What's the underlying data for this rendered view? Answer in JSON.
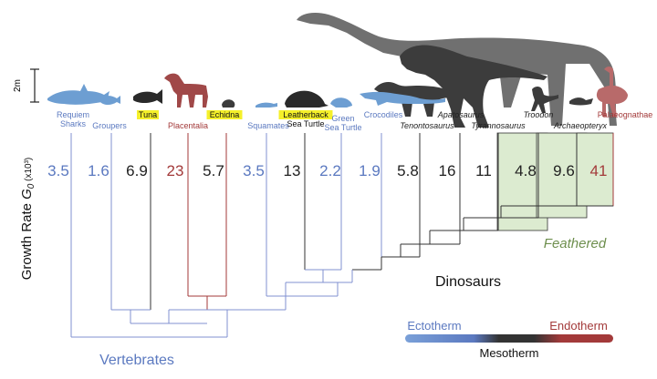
{
  "y_axis_label": "Growth Rate ",
  "y_axis_symbol": "G",
  "y_axis_sub": "0",
  "y_axis_unit": " (x10³)",
  "scale_label": "2m",
  "taxa": [
    {
      "label1": "Requiem",
      "label2": "Sharks",
      "value": "3.5",
      "class": "ecto"
    },
    {
      "label1": "Groupers",
      "label2": "",
      "value": "1.6",
      "class": "ecto"
    },
    {
      "label1": "Tuna",
      "label2": "",
      "value": "6.9",
      "class": "meso",
      "highlight": true
    },
    {
      "label1": "Placentalia",
      "label2": "",
      "value": "23",
      "class": "endo"
    },
    {
      "label1": "Echidna",
      "label2": "",
      "value": "5.7",
      "class": "meso",
      "highlight": true
    },
    {
      "label1": "Squamates",
      "label2": "",
      "value": "3.5",
      "class": "ecto"
    },
    {
      "label1": "Leatherback",
      "label2": "Sea Turtle",
      "value": "13",
      "class": "meso",
      "highlight": true
    },
    {
      "label1": "Green",
      "label2": "Sea Turtle",
      "value": "2.2",
      "class": "ecto"
    },
    {
      "label1": "Crocodiles",
      "label2": "",
      "value": "1.9",
      "class": "ecto"
    },
    {
      "label1": "Tenontosaurus",
      "label2": "",
      "value": "5.8",
      "class": "meso",
      "italic": true
    },
    {
      "label1": "Apatosaurus",
      "label2": "",
      "value": "16",
      "class": "meso",
      "italic": true
    },
    {
      "label1": "Tyrannosaurus",
      "label2": "",
      "value": "11",
      "class": "meso",
      "italic": true
    },
    {
      "label1": "Troodon",
      "label2": "",
      "value": "4.8",
      "class": "meso",
      "italic": true
    },
    {
      "label1": "Archaeopteryx",
      "label2": "",
      "value": "9.6",
      "class": "meso",
      "italic": true
    },
    {
      "label1": "Palaeognathae",
      "label2": "",
      "value": "41",
      "class": "endo"
    }
  ],
  "clade_labels": {
    "vertebrates": "Vertebrates",
    "dinosaurs": "Dinosaurs",
    "feathered": "Feathered"
  },
  "legend": {
    "ectotherm": "Ectotherm",
    "mesotherm": "Mesotherm",
    "endotherm": "Endotherm"
  },
  "colors": {
    "ectotherm": "#5b79c0",
    "mesotherm": "#222222",
    "endotherm": "#a33a3a",
    "feathered_fill": "#dcebd0",
    "feathered_text": "#6e8f4e",
    "highlight": "#f5f02a",
    "tree_blue": "#8090d0",
    "tree_red": "#a33a3a",
    "silhouette_blue": "#6d9ed2",
    "silhouette_dark": "#3c3c3c",
    "silhouette_gray": "#707070",
    "horse": "#a04848",
    "ostrich": "#b86a6a"
  }
}
